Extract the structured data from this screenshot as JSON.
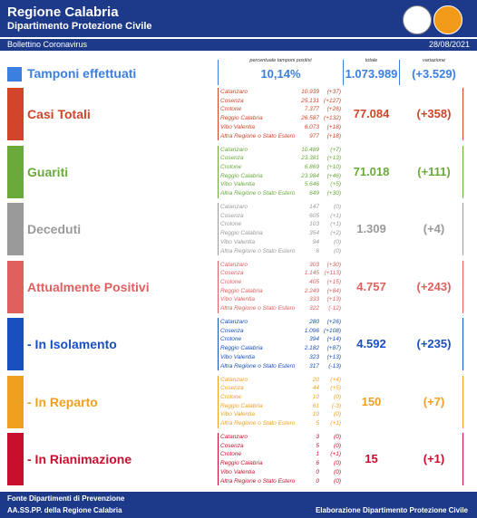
{
  "header": {
    "title": "Regione Calabria",
    "subtitle": "Dipartimento Protezione Civile",
    "bulletin": "Bollettino Coronavirus",
    "date": "28/08/2021"
  },
  "tamponi": {
    "label": "Tamponi effettuati",
    "pct_label": "percentuale tamponi positivi",
    "pct": "10,14%",
    "total_label": "totale",
    "total": "1.073.989",
    "var_label": "variazione",
    "var": "(+3.529)",
    "color": "#3b7fe0"
  },
  "sections": [
    {
      "label": "Casi Totali",
      "color": "#d2452a",
      "total": "77.084",
      "var": "(+358)",
      "rows": [
        [
          "Catanzaro",
          "10.939",
          "(+37)"
        ],
        [
          "Cosenza",
          "25.131",
          "(+127)"
        ],
        [
          "Crotone",
          "7.377",
          "(+26)"
        ],
        [
          "Reggio Calabria",
          "26.587",
          "(+132)"
        ],
        [
          "Vibo Valentia",
          "6.073",
          "(+18)"
        ],
        [
          "Altra Regione o Stato Estero",
          "977",
          "(+18)"
        ]
      ]
    },
    {
      "label": "Guariti",
      "color": "#6aaa3a",
      "total": "71.018",
      "var": "(+111)",
      "rows": [
        [
          "Catanzaro",
          "10.489",
          "(+7)"
        ],
        [
          "Cosenza",
          "23.381",
          "(+13)"
        ],
        [
          "Crotone",
          "6.869",
          "(+10)"
        ],
        [
          "Reggio Calabria",
          "23.984",
          "(+46)"
        ],
        [
          "Vibo Valentia",
          "5.646",
          "(+5)"
        ],
        [
          "Altra Regione o Stato Estero",
          "649",
          "(+30)"
        ]
      ]
    },
    {
      "label": "Deceduti",
      "color": "#9a9a9a",
      "total": "1.309",
      "var": "(+4)",
      "rows": [
        [
          "Catanzaro",
          "147",
          "(0)"
        ],
        [
          "Cosenza",
          "605",
          "(+1)"
        ],
        [
          "Crotone",
          "103",
          "(+1)"
        ],
        [
          "Reggio Calabria",
          "354",
          "(+2)"
        ],
        [
          "Vibo Valentia",
          "94",
          "(0)"
        ],
        [
          "Altra Regione o Stato Estero",
          "6",
          "(0)"
        ]
      ]
    },
    {
      "label": "Attualmente Positivi",
      "color": "#e06060",
      "total": "4.757",
      "var": "(+243)",
      "rows": [
        [
          "Catanzaro",
          "303",
          "(+30)"
        ],
        [
          "Cosenza",
          "1.145",
          "(+113)"
        ],
        [
          "Crotone",
          "405",
          "(+15)"
        ],
        [
          "Reggio Calabria",
          "2.249",
          "(+84)"
        ],
        [
          "Vibo Valentia",
          "333",
          "(+13)"
        ],
        [
          "Altra Regione o Stato Estero",
          "322",
          "(-12)"
        ]
      ]
    },
    {
      "label": "- In Isolamento",
      "color": "#1a4fc0",
      "total": "4.592",
      "var": "(+235)",
      "rows": [
        [
          "Catanzaro",
          "280",
          "(+26)"
        ],
        [
          "Cosenza",
          "1.096",
          "(+108)"
        ],
        [
          "Crotone",
          "394",
          "(+14)"
        ],
        [
          "Reggio Calabria",
          "2.182",
          "(+87)"
        ],
        [
          "Vibo Valentia",
          "323",
          "(+13)"
        ],
        [
          "Altra Regione o Stato Estero",
          "317",
          "(-13)"
        ]
      ]
    },
    {
      "label": "- In Reparto",
      "color": "#f0a020",
      "total": "150",
      "var": "(+7)",
      "rows": [
        [
          "Catanzaro",
          "20",
          "(+4)"
        ],
        [
          "Cosenza",
          "44",
          "(+5)"
        ],
        [
          "Crotone",
          "10",
          "(0)"
        ],
        [
          "Reggio Calabria",
          "61",
          "(-3)"
        ],
        [
          "Vibo Valentia",
          "10",
          "(0)"
        ],
        [
          "Altra Regione o Stato Estero",
          "5",
          "(+1)"
        ]
      ]
    },
    {
      "label": "- In Rianimazione",
      "color": "#c8102e",
      "total": "15",
      "var": "(+1)",
      "rows": [
        [
          "Catanzaro",
          "3",
          "(0)"
        ],
        [
          "Cosenza",
          "5",
          "(0)"
        ],
        [
          "Crotone",
          "1",
          "(+1)"
        ],
        [
          "Reggio Calabria",
          "6",
          "(0)"
        ],
        [
          "Vibo Valentia",
          "0",
          "(0)"
        ],
        [
          "Altra Regione o Stato Estero",
          "0",
          "(0)"
        ]
      ]
    }
  ],
  "footer": {
    "source1": "Fonte Dipartimenti di Prevenzione",
    "source2": "AA.SS.PP.  della Regione Calabria",
    "credit": "Elaborazione Dipartimento Protezione Civile"
  }
}
